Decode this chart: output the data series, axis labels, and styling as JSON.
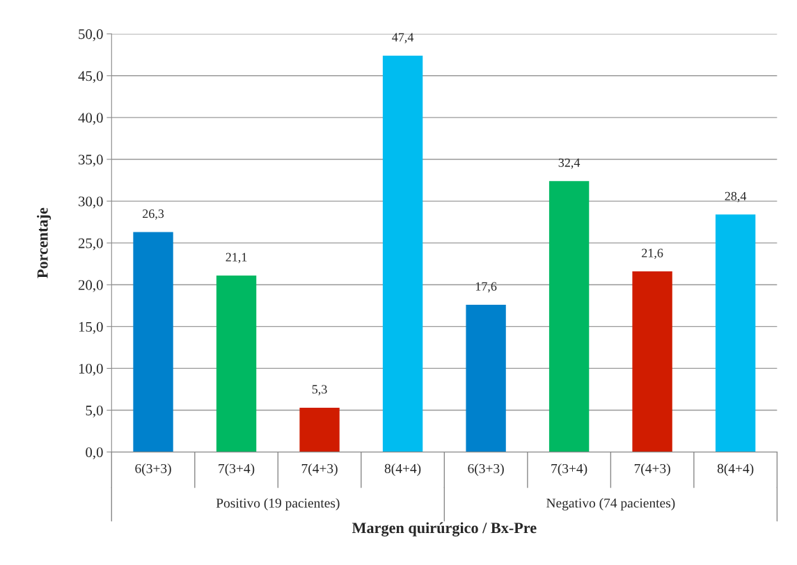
{
  "chart_data": {
    "type": "bar",
    "xlabel": "Margen quirúrgico / Bx-Pre",
    "ylabel": "Porcentaje",
    "categories": [
      "6(3+3)",
      "7(3+4)",
      "7(4+3)",
      "8(4+4)",
      "6(3+3)",
      "7(3+4)",
      "7(4+3)",
      "8(4+4)"
    ],
    "values": [
      26.3,
      21.1,
      5.3,
      47.4,
      17.6,
      32.4,
      21.6,
      28.4
    ],
    "colors": [
      "#0081cc",
      "#00b862",
      "#d01c00",
      "#00bcf0",
      "#0081cc",
      "#00b862",
      "#d01c00",
      "#00bcf0"
    ],
    "value_labels": [
      "26,3",
      "21,1",
      "5,3",
      "47,4",
      "17,6",
      "32,4",
      "21,6",
      "28,4"
    ],
    "ylim": [
      0,
      50
    ],
    "yticks": [
      {
        "value": 0,
        "label": "0,0"
      },
      {
        "value": 5,
        "label": "5,0"
      },
      {
        "value": 10,
        "label": "10,0"
      },
      {
        "value": 15,
        "label": "15,0"
      },
      {
        "value": 20,
        "label": "20,0"
      },
      {
        "value": 25,
        "label": "25,0"
      },
      {
        "value": 30,
        "label": "30,0"
      },
      {
        "value": 35,
        "label": "35,0"
      },
      {
        "value": 40,
        "label": "40,0"
      },
      {
        "value": 45,
        "label": "45,0"
      },
      {
        "value": 50,
        "label": "50,0"
      }
    ],
    "annotations": [
      "Positivo (19 pacientes)",
      "Negativo (74 pacientes)"
    ],
    "grid": "y",
    "legend": false
  }
}
